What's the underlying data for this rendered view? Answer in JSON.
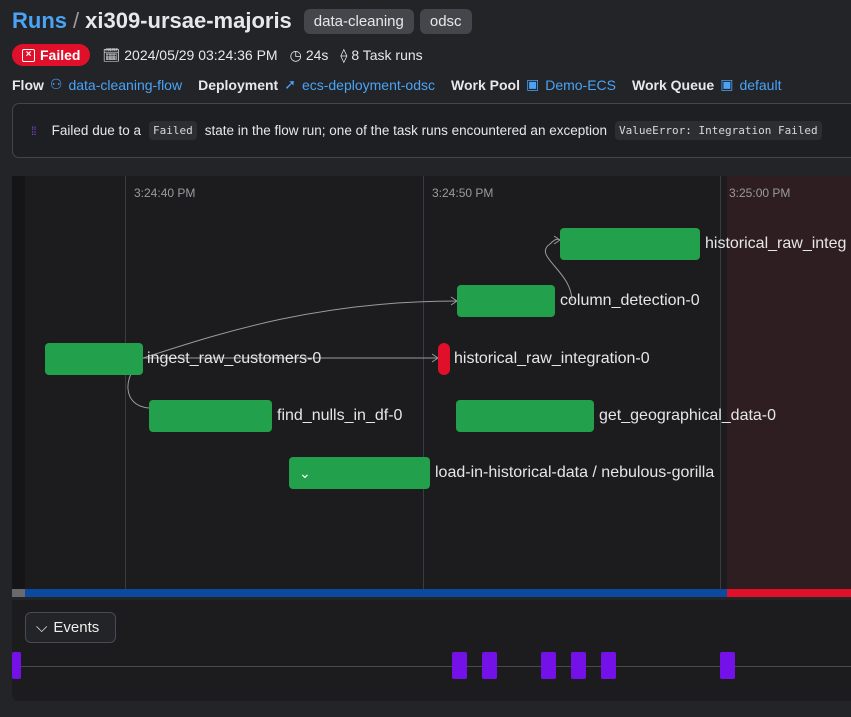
{
  "header": {
    "breadcrumb_root": "Runs",
    "separator": "/",
    "run_name": "xi309-ursae-majoris",
    "tags": [
      "data-cleaning",
      "odsc"
    ]
  },
  "meta": {
    "state": "Failed",
    "start_time": "2024/05/29 03:24:36 PM",
    "duration": "24s",
    "task_runs": "8 Task runs"
  },
  "relations": {
    "flow_label": "Flow",
    "flow": "data-cleaning-flow",
    "deployment_label": "Deployment",
    "deployment": "ecs-deployment-odsc",
    "work_pool_label": "Work Pool",
    "work_pool": "Demo-ECS",
    "work_queue_label": "Work Queue",
    "work_queue": "default"
  },
  "message": {
    "prefix": "Failed due to a",
    "code1": "Failed",
    "middle": "state in the flow run; one of the task runs encountered an exception",
    "code2": "ValueError: Integration Failed"
  },
  "timeline": {
    "ticks": [
      "3:24:40 PM",
      "3:24:50 PM",
      "3:25:00 PM"
    ],
    "nodes": [
      {
        "label": "ingest_raw_customers-0",
        "state": "completed"
      },
      {
        "label": "find_nulls_in_df-0",
        "state": "completed"
      },
      {
        "label": "column_detection-0",
        "state": "completed"
      },
      {
        "label": "historical_raw_integration-0",
        "state": "failed"
      },
      {
        "label": "get_geographical_data-0",
        "state": "completed"
      },
      {
        "label": "historical_raw_integ",
        "state": "completed"
      },
      {
        "label": "load-in-historical-data / nebulous-gorilla",
        "state": "completed",
        "expandable": true
      }
    ]
  },
  "colors": {
    "completed": "#22a04b",
    "failed": "#e0102a",
    "running": "#0b4a9e",
    "event": "#7410e8",
    "link": "#4aa3f5"
  },
  "events": {
    "button_label": "Events",
    "count": 7
  }
}
